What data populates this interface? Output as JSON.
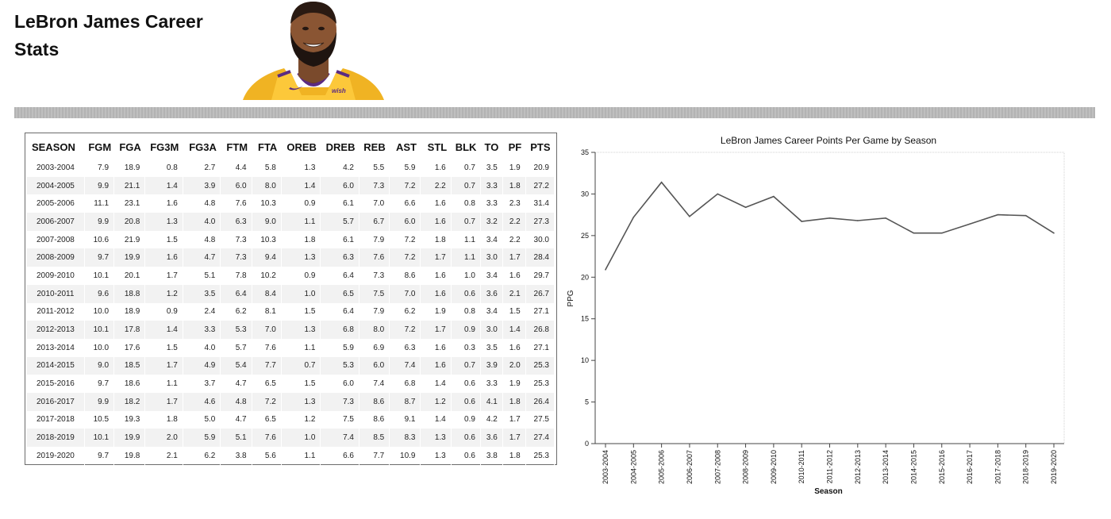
{
  "header": {
    "title": "LeBron James Career Stats"
  },
  "table": {
    "columns": [
      "SEASON",
      "FGM",
      "FGA",
      "FG3M",
      "FG3A",
      "FTM",
      "FTA",
      "OREB",
      "DREB",
      "REB",
      "AST",
      "STL",
      "BLK",
      "TO",
      "PF",
      "PTS"
    ],
    "rows": [
      [
        "2003-2004",
        "7.9",
        "18.9",
        "0.8",
        "2.7",
        "4.4",
        "5.8",
        "1.3",
        "4.2",
        "5.5",
        "5.9",
        "1.6",
        "0.7",
        "3.5",
        "1.9",
        "20.9"
      ],
      [
        "2004-2005",
        "9.9",
        "21.1",
        "1.4",
        "3.9",
        "6.0",
        "8.0",
        "1.4",
        "6.0",
        "7.3",
        "7.2",
        "2.2",
        "0.7",
        "3.3",
        "1.8",
        "27.2"
      ],
      [
        "2005-2006",
        "11.1",
        "23.1",
        "1.6",
        "4.8",
        "7.6",
        "10.3",
        "0.9",
        "6.1",
        "7.0",
        "6.6",
        "1.6",
        "0.8",
        "3.3",
        "2.3",
        "31.4"
      ],
      [
        "2006-2007",
        "9.9",
        "20.8",
        "1.3",
        "4.0",
        "6.3",
        "9.0",
        "1.1",
        "5.7",
        "6.7",
        "6.0",
        "1.6",
        "0.7",
        "3.2",
        "2.2",
        "27.3"
      ],
      [
        "2007-2008",
        "10.6",
        "21.9",
        "1.5",
        "4.8",
        "7.3",
        "10.3",
        "1.8",
        "6.1",
        "7.9",
        "7.2",
        "1.8",
        "1.1",
        "3.4",
        "2.2",
        "30.0"
      ],
      [
        "2008-2009",
        "9.7",
        "19.9",
        "1.6",
        "4.7",
        "7.3",
        "9.4",
        "1.3",
        "6.3",
        "7.6",
        "7.2",
        "1.7",
        "1.1",
        "3.0",
        "1.7",
        "28.4"
      ],
      [
        "2009-2010",
        "10.1",
        "20.1",
        "1.7",
        "5.1",
        "7.8",
        "10.2",
        "0.9",
        "6.4",
        "7.3",
        "8.6",
        "1.6",
        "1.0",
        "3.4",
        "1.6",
        "29.7"
      ],
      [
        "2010-2011",
        "9.6",
        "18.8",
        "1.2",
        "3.5",
        "6.4",
        "8.4",
        "1.0",
        "6.5",
        "7.5",
        "7.0",
        "1.6",
        "0.6",
        "3.6",
        "2.1",
        "26.7"
      ],
      [
        "2011-2012",
        "10.0",
        "18.9",
        "0.9",
        "2.4",
        "6.2",
        "8.1",
        "1.5",
        "6.4",
        "7.9",
        "6.2",
        "1.9",
        "0.8",
        "3.4",
        "1.5",
        "27.1"
      ],
      [
        "2012-2013",
        "10.1",
        "17.8",
        "1.4",
        "3.3",
        "5.3",
        "7.0",
        "1.3",
        "6.8",
        "8.0",
        "7.2",
        "1.7",
        "0.9",
        "3.0",
        "1.4",
        "26.8"
      ],
      [
        "2013-2014",
        "10.0",
        "17.6",
        "1.5",
        "4.0",
        "5.7",
        "7.6",
        "1.1",
        "5.9",
        "6.9",
        "6.3",
        "1.6",
        "0.3",
        "3.5",
        "1.6",
        "27.1"
      ],
      [
        "2014-2015",
        "9.0",
        "18.5",
        "1.7",
        "4.9",
        "5.4",
        "7.7",
        "0.7",
        "5.3",
        "6.0",
        "7.4",
        "1.6",
        "0.7",
        "3.9",
        "2.0",
        "25.3"
      ],
      [
        "2015-2016",
        "9.7",
        "18.6",
        "1.1",
        "3.7",
        "4.7",
        "6.5",
        "1.5",
        "6.0",
        "7.4",
        "6.8",
        "1.4",
        "0.6",
        "3.3",
        "1.9",
        "25.3"
      ],
      [
        "2016-2017",
        "9.9",
        "18.2",
        "1.7",
        "4.6",
        "4.8",
        "7.2",
        "1.3",
        "7.3",
        "8.6",
        "8.7",
        "1.2",
        "0.6",
        "4.1",
        "1.8",
        "26.4"
      ],
      [
        "2017-2018",
        "10.5",
        "19.3",
        "1.8",
        "5.0",
        "4.7",
        "6.5",
        "1.2",
        "7.5",
        "8.6",
        "9.1",
        "1.4",
        "0.9",
        "4.2",
        "1.7",
        "27.5"
      ],
      [
        "2018-2019",
        "10.1",
        "19.9",
        "2.0",
        "5.9",
        "5.1",
        "7.6",
        "1.0",
        "7.4",
        "8.5",
        "8.3",
        "1.3",
        "0.6",
        "3.6",
        "1.7",
        "27.4"
      ],
      [
        "2019-2020",
        "9.7",
        "19.8",
        "2.1",
        "6.2",
        "3.8",
        "5.6",
        "1.1",
        "6.6",
        "7.7",
        "10.9",
        "1.3",
        "0.6",
        "3.8",
        "1.8",
        "25.3"
      ]
    ]
  },
  "chart_data": {
    "type": "line",
    "title": "LeBron James Career Points Per Game by Season",
    "xlabel": "Season",
    "ylabel": "PPG",
    "ylim": [
      0,
      35
    ],
    "yticks": [
      0,
      5,
      10,
      15,
      20,
      25,
      30,
      35
    ],
    "grid": false,
    "categories": [
      "2003-2004",
      "2004-2005",
      "2005-2006",
      "2006-2007",
      "2007-2008",
      "2008-2009",
      "2009-2010",
      "2010-2011",
      "2011-2012",
      "2012-2013",
      "2013-2014",
      "2014-2015",
      "2015-2016",
      "2016-2017",
      "2017-2018",
      "2018-2019",
      "2019-2020"
    ],
    "series": [
      {
        "values": [
          20.9,
          27.2,
          31.4,
          27.3,
          30.0,
          28.4,
          29.7,
          26.7,
          27.1,
          26.8,
          27.1,
          25.3,
          25.3,
          26.4,
          27.5,
          27.4,
          25.3
        ],
        "color": "#555555"
      }
    ]
  }
}
